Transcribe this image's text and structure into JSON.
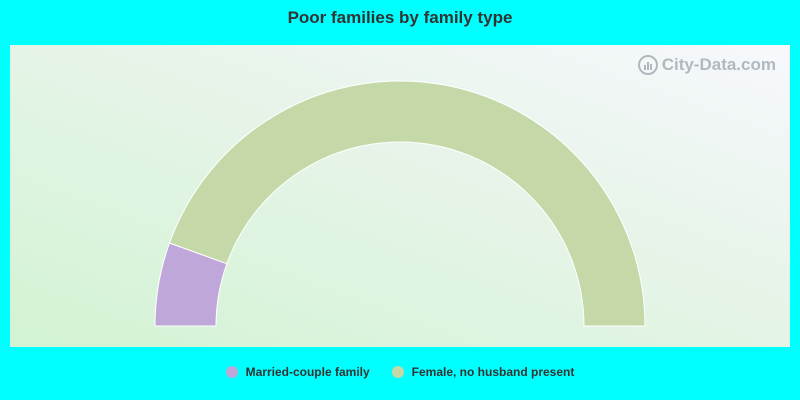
{
  "chart_data": {
    "type": "pie",
    "subtype": "half-donut",
    "title": "Poor families by family type",
    "series": [
      {
        "name": "Married-couple family",
        "value": 11,
        "color": "#bfa8d9"
      },
      {
        "name": "Female, no husband present",
        "value": 89,
        "color": "#c5d9a8"
      }
    ],
    "legend_position": "bottom"
  },
  "watermark": {
    "text": "City-Data.com",
    "icon": "city-data-logo-icon"
  }
}
